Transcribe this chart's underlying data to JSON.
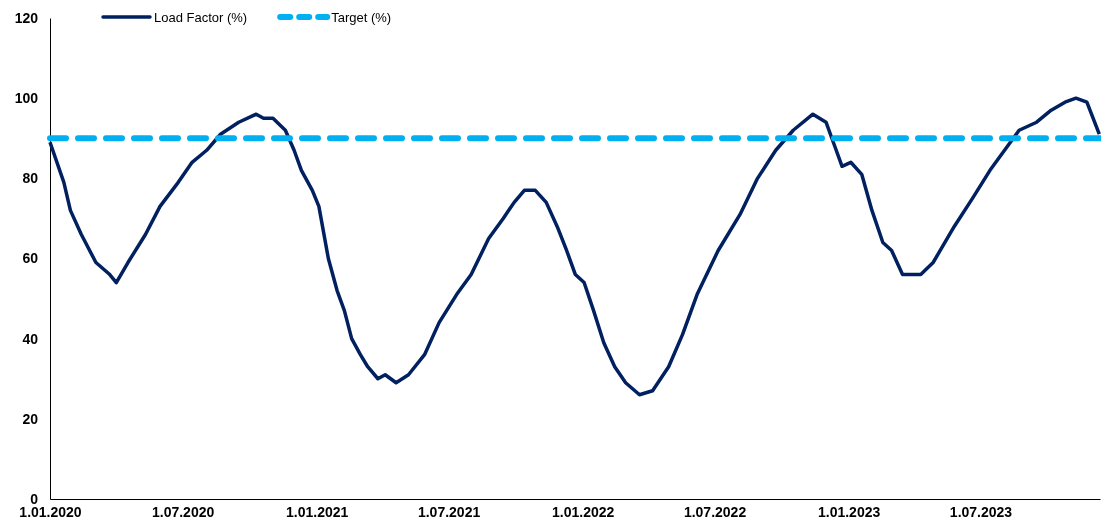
{
  "chart_data": {
    "type": "line",
    "xlim": [
      "2020-01-01",
      "2023-12-12"
    ],
    "ylim": [
      0,
      120
    ],
    "xticks": [
      {
        "value": "2020-01-01",
        "label": "1.01.2020"
      },
      {
        "value": "2020-07-01",
        "label": "1.07.2020"
      },
      {
        "value": "2021-01-01",
        "label": "1.01.2021"
      },
      {
        "value": "2021-07-01",
        "label": "1.07.2021"
      },
      {
        "value": "2022-01-01",
        "label": "1.01.2022"
      },
      {
        "value": "2022-07-01",
        "label": "1.07.2022"
      },
      {
        "value": "2023-01-01",
        "label": "1.01.2023"
      },
      {
        "value": "2023-07-01",
        "label": "1.07.2023"
      }
    ],
    "yticks": [
      0,
      20,
      40,
      60,
      80,
      100,
      120
    ],
    "grid": false,
    "legend": "top",
    "marker": "none",
    "series": [
      {
        "name": "Load Factor (%)",
        "color": "#002060",
        "line_style": "solid",
        "x": [
          "2020-01-01",
          "2020-01-20",
          "2020-01-29",
          "2020-02-13",
          "2020-03-04",
          "2020-03-23",
          "2020-04-01",
          "2020-04-17",
          "2020-05-11",
          "2020-05-31",
          "2020-06-25",
          "2020-07-14",
          "2020-08-03",
          "2020-08-22",
          "2020-09-16",
          "2020-10-10",
          "2020-10-20",
          "2020-11-02",
          "2020-11-19",
          "2020-12-01",
          "2020-12-11",
          "2020-12-26",
          "2021-01-04",
          "2021-01-17",
          "2021-01-29",
          "2021-02-08",
          "2021-02-18",
          "2021-03-02",
          "2021-03-12",
          "2021-03-26",
          "2021-04-05",
          "2021-04-20",
          "2021-05-07",
          "2021-05-29",
          "2021-06-18",
          "2021-07-12",
          "2021-08-01",
          "2021-08-25",
          "2021-09-14",
          "2021-09-29",
          "2021-10-13",
          "2021-10-28",
          "2021-11-12",
          "2021-11-27",
          "2021-12-10",
          "2021-12-22",
          "2022-01-03",
          "2022-01-16",
          "2022-01-30",
          "2022-02-14",
          "2022-03-01",
          "2022-03-20",
          "2022-04-07",
          "2022-04-29",
          "2022-05-18",
          "2022-06-07",
          "2022-07-06",
          "2022-08-05",
          "2022-08-29",
          "2022-09-23",
          "2022-10-17",
          "2022-11-13",
          "2022-12-01",
          "2022-12-13",
          "2022-12-23",
          "2023-01-04",
          "2023-01-19",
          "2023-02-02",
          "2023-02-17",
          "2023-03-01",
          "2023-03-16",
          "2023-03-31",
          "2023-04-10",
          "2023-04-27",
          "2023-05-26",
          "2023-06-20",
          "2023-07-14",
          "2023-08-03",
          "2023-08-23",
          "2023-09-16",
          "2023-10-06",
          "2023-10-25",
          "2023-11-09",
          "2023-11-24",
          "2023-12-11"
        ],
        "values": [
          89,
          79,
          72,
          66,
          59,
          56,
          54,
          59,
          66,
          73,
          79,
          84,
          87,
          91,
          94,
          96,
          95,
          95,
          92,
          87,
          82,
          77,
          73,
          60,
          52,
          47,
          40,
          36,
          33,
          30,
          31,
          29,
          31,
          36,
          44,
          51,
          56,
          65,
          70,
          74,
          77,
          77,
          74,
          68,
          62,
          56,
          54,
          47,
          39,
          33,
          29,
          26,
          27,
          33,
          41,
          51,
          62,
          71,
          80,
          87,
          92,
          96,
          94,
          88,
          83,
          84,
          81,
          72,
          64,
          62,
          56,
          56,
          56,
          59,
          68,
          75,
          82,
          87,
          92,
          94,
          97,
          99,
          100,
          99,
          91
        ]
      },
      {
        "name": "Target (%)",
        "color": "#00b0f0",
        "line_style": "dashed",
        "x": [
          "2020-01-01",
          "2023-12-12"
        ],
        "values": [
          90,
          90
        ]
      }
    ]
  }
}
